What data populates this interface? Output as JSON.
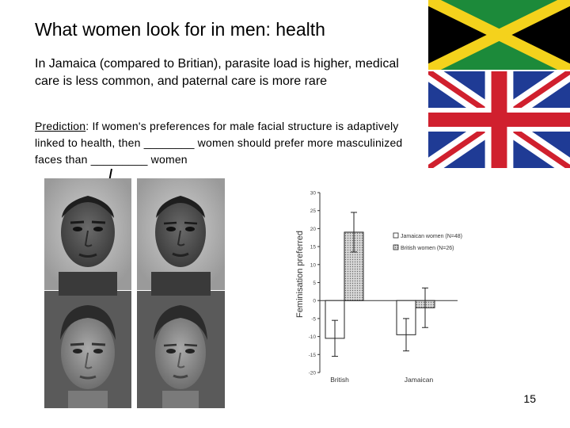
{
  "slide": {
    "title": "What women look for in men:  health",
    "intro": "In Jamaica (compared to Britian), parasite load is higher, medical care is less common, and paternal care is more rare",
    "prediction_label": "Prediction",
    "prediction_text": ":  If women's preferences for male facial structure is adaptively linked to health, then ________ women should prefer more masculinized faces than _________ women",
    "page_number": "15"
  },
  "flags": [
    "jamaica-flag",
    "union-jack-flag"
  ],
  "chart_data": {
    "type": "bar",
    "ylabel": "Feminisation preferred",
    "ylim": [
      -20,
      30
    ],
    "yticks": [
      30,
      25,
      20,
      15,
      10,
      5,
      0,
      -5,
      -10,
      -15,
      -20
    ],
    "categories": [
      "British",
      "Jamaican"
    ],
    "series": [
      {
        "name": "Jamaican women (N=48)",
        "color": "#ffffff",
        "values": [
          -10.5,
          -9.5
        ],
        "errors": [
          5,
          4.5
        ]
      },
      {
        "name": "British women (N=26)",
        "color": "#c4c4c4",
        "values": [
          19,
          -2
        ],
        "errors": [
          5.5,
          5.5
        ]
      }
    ],
    "legend": "right",
    "grid": false
  }
}
